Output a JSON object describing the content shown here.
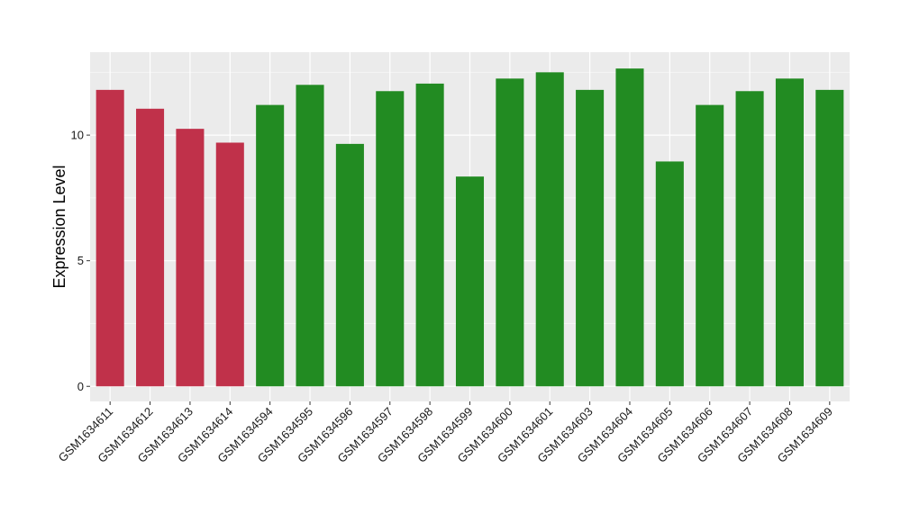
{
  "chart_data": {
    "type": "bar",
    "title": "",
    "xlabel": "",
    "ylabel": "Expression Level",
    "ylim": [
      -0.6,
      13.3
    ],
    "yticks": [
      0,
      5,
      10
    ],
    "grid": true,
    "legend": "none",
    "colors": {
      "group_a": "#C0314A",
      "group_b": "#228B22",
      "panel_bg": "#EBEBEB",
      "grid_major": "#FFFFFF",
      "grid_minor": "#F5F5F5"
    },
    "categories": [
      "GSM1634611",
      "GSM1634612",
      "GSM1634613",
      "GSM1634614",
      "GSM1634594",
      "GSM1634595",
      "GSM1634596",
      "GSM1634597",
      "GSM1634598",
      "GSM1634599",
      "GSM1634600",
      "GSM1634601",
      "GSM1634603",
      "GSM1634604",
      "GSM1634605",
      "GSM1634606",
      "GSM1634607",
      "GSM1634608",
      "GSM1634609"
    ],
    "values": [
      11.8,
      11.05,
      10.25,
      9.7,
      11.2,
      12.0,
      9.65,
      11.75,
      12.05,
      8.35,
      12.25,
      12.5,
      11.8,
      12.65,
      8.95,
      11.2,
      11.75,
      12.25,
      11.8
    ],
    "groups": [
      "group_a",
      "group_a",
      "group_a",
      "group_a",
      "group_b",
      "group_b",
      "group_b",
      "group_b",
      "group_b",
      "group_b",
      "group_b",
      "group_b",
      "group_b",
      "group_b",
      "group_b",
      "group_b",
      "group_b",
      "group_b",
      "group_b"
    ]
  }
}
